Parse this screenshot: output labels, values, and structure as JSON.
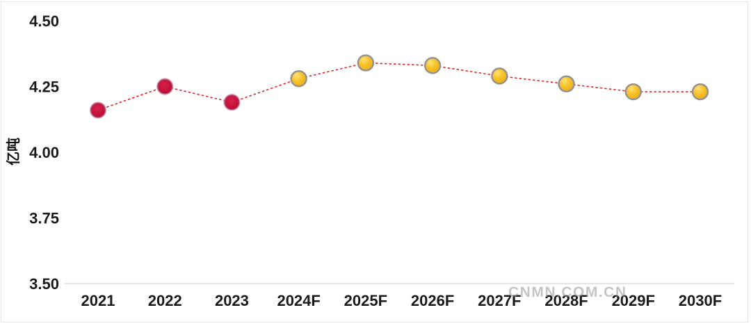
{
  "watermark": {
    "text": "CNMN.COM.CN"
  },
  "chart_data": {
    "type": "line",
    "title": "",
    "categories": [
      "2021",
      "2022",
      "2023",
      "2024F",
      "2025F",
      "2026F",
      "2027F",
      "2028F",
      "2029F",
      "2030F"
    ],
    "values": [
      4.16,
      4.25,
      4.19,
      4.28,
      4.34,
      4.33,
      4.29,
      4.26,
      4.23,
      4.23
    ],
    "point_types": [
      "actual",
      "actual",
      "actual",
      "forecast",
      "forecast",
      "forecast",
      "forecast",
      "forecast",
      "forecast",
      "forecast"
    ],
    "xlabel": "",
    "ylabel": "亿吨",
    "ylim": [
      3.5,
      4.5
    ],
    "yticks": [
      4.5,
      4.25,
      4.0,
      3.75,
      3.5
    ],
    "grid": false,
    "legend": "none",
    "line_style": "dashed",
    "colors": {
      "line": "#dd2a2a",
      "actual_marker": "#c01238",
      "actual_marker_ring": "#b47ba2",
      "forecast_marker": "#f3b71d",
      "forecast_marker_ring": "#919191",
      "axis_line": "#d9d9d9",
      "frame_border": "#e4e4e4",
      "tick_text": "#1a1a1a",
      "watermark_text": "#969696"
    }
  }
}
